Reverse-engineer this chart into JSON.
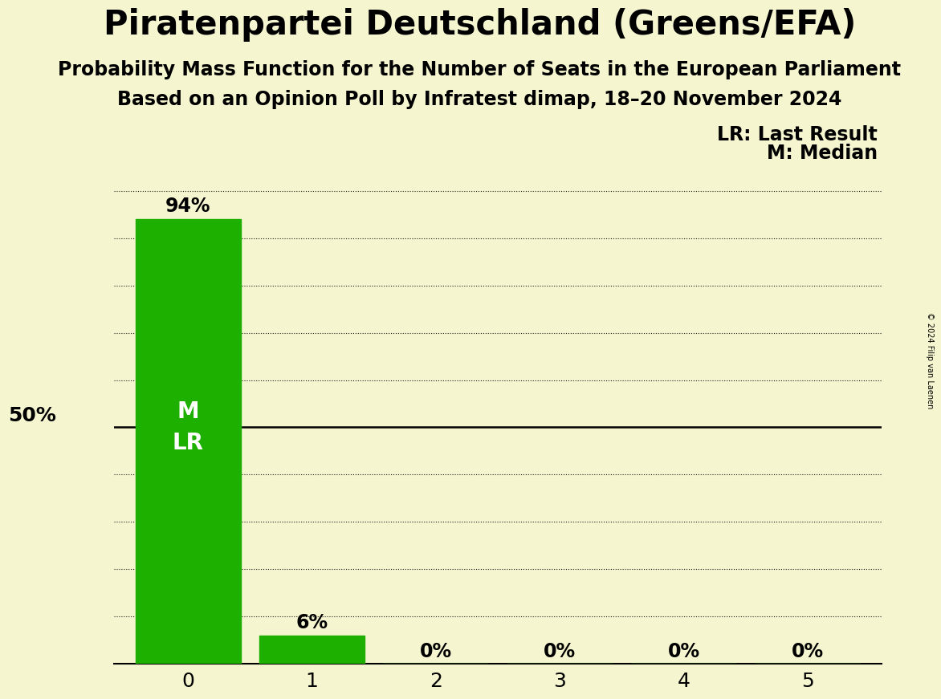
{
  "title": "Piratenpartei Deutschland (Greens/EFA)",
  "subtitle1": "Probability Mass Function for the Number of Seats in the European Parliament",
  "subtitle2": "Based on an Opinion Poll by Infratest dimap, 18–20 November 2024",
  "copyright": "© 2024 Filip van Laenen",
  "seats": [
    0,
    1,
    2,
    3,
    4,
    5
  ],
  "probabilities": [
    0.94,
    0.06,
    0.0,
    0.0,
    0.0,
    0.0
  ],
  "bar_color": "#1db000",
  "background_color": "#f5f5d0",
  "median": 0,
  "last_result": 0,
  "ylabel_50": "50%",
  "y_ticks": [
    0.0,
    0.1,
    0.2,
    0.3,
    0.4,
    0.5,
    0.6,
    0.7,
    0.8,
    0.9,
    1.0
  ],
  "bar_labels": [
    "94%",
    "6%",
    "0%",
    "0%",
    "0%",
    "0%"
  ],
  "legend_lr": "LR: Last Result",
  "legend_m": "M: Median",
  "title_fontsize": 30,
  "subtitle_fontsize": 17,
  "axis_label_fontsize": 18,
  "bar_label_fontsize": 17,
  "inbar_label_fontsize": 20,
  "copyright_fontsize": 7
}
